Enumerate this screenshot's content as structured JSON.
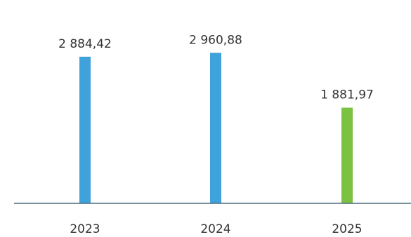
{
  "chart_data": {
    "type": "bar",
    "title": "",
    "xlabel": "",
    "ylabel": "",
    "categories": [
      "2023",
      "2024",
      "2025"
    ],
    "values": [
      2884.42,
      2960.88,
      1881.97
    ],
    "value_labels": [
      "2 884,42",
      "2 960,88",
      "1 881,97"
    ],
    "bar_colors": [
      "#3FA2DA",
      "#3FA2DA",
      "#7BC142"
    ],
    "axis_color": "#4F6A7D",
    "grid": false,
    "ylim": [
      0,
      4000
    ]
  }
}
